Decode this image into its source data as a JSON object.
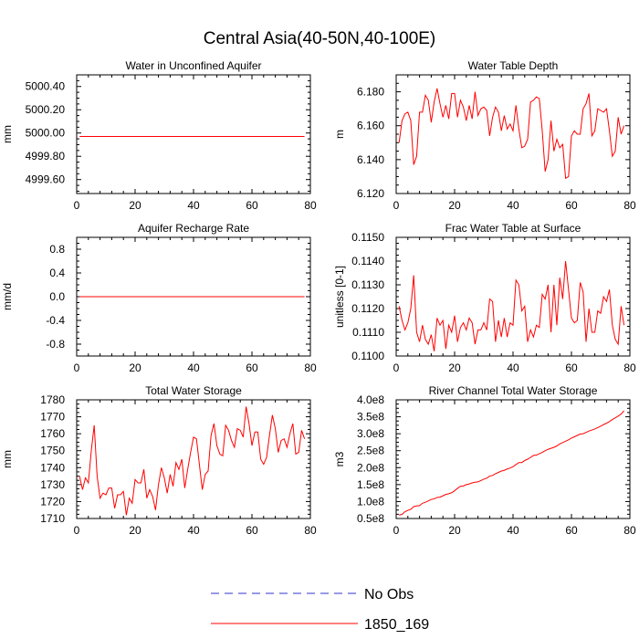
{
  "page_title": "Central Asia(40-50N,40-100E)",
  "colors": {
    "series": "#ff0000",
    "obs": "#3333cc",
    "axis": "#000000",
    "background": "#ffffff"
  },
  "legend": {
    "entries": [
      {
        "label": "No Obs",
        "style": "dashed",
        "color": "#3333cc"
      },
      {
        "label": "1850_169",
        "style": "solid",
        "color": "#ff0000"
      }
    ]
  },
  "chart_data": [
    {
      "type": "line",
      "title": "Water in Unconfined Aquifer",
      "ylabel": "mm",
      "xlim": [
        0,
        80
      ],
      "ylim": [
        4999.48,
        5000.5
      ],
      "xticks": [
        0,
        20,
        40,
        60,
        80
      ],
      "yticks": [
        4999.6,
        4999.8,
        5000.0,
        5000.2,
        5000.4
      ],
      "ytick_labels": [
        "4999.60",
        "4999.80",
        "5000.00",
        "5000.20",
        "5000.40"
      ],
      "series": [
        {
          "name": "1850_169",
          "x_start": 1,
          "values": [
            4999.97,
            4999.97,
            4999.97,
            4999.97,
            4999.97,
            4999.97,
            4999.97,
            4999.97,
            4999.97,
            4999.97,
            4999.97,
            4999.97,
            4999.97,
            4999.97,
            4999.97,
            4999.97,
            4999.97,
            4999.97,
            4999.97,
            4999.97,
            4999.97,
            4999.97,
            4999.97,
            4999.97,
            4999.97,
            4999.97,
            4999.97,
            4999.97,
            4999.97,
            4999.97,
            4999.97,
            4999.97,
            4999.97,
            4999.97,
            4999.97,
            4999.97,
            4999.97,
            4999.97,
            4999.97,
            4999.97,
            4999.97,
            4999.97,
            4999.97,
            4999.97,
            4999.97,
            4999.97,
            4999.97,
            4999.97,
            4999.97,
            4999.97,
            4999.97,
            4999.97,
            4999.97,
            4999.97,
            4999.97,
            4999.97,
            4999.97,
            4999.97,
            4999.97,
            4999.97,
            4999.97,
            4999.97,
            4999.97,
            4999.97,
            4999.97,
            4999.97,
            4999.97,
            4999.97,
            4999.97,
            4999.97,
            4999.97,
            4999.97,
            4999.97,
            4999.97,
            4999.97,
            4999.97,
            4999.97,
            4999.97
          ]
        }
      ]
    },
    {
      "type": "line",
      "title": "Water Table Depth",
      "ylabel": "m",
      "xlim": [
        0,
        80
      ],
      "ylim": [
        6.12,
        6.19
      ],
      "xticks": [
        0,
        20,
        40,
        60,
        80
      ],
      "yticks": [
        6.12,
        6.14,
        6.16,
        6.18
      ],
      "ytick_labels": [
        "6.120",
        "6.140",
        "6.160",
        "6.180"
      ],
      "series": [
        {
          "name": "1850_169",
          "x_start": 1,
          "values": [
            6.15,
            6.163,
            6.167,
            6.168,
            6.163,
            6.137,
            6.142,
            6.168,
            6.168,
            6.178,
            6.175,
            6.162,
            6.174,
            6.182,
            6.173,
            6.165,
            6.172,
            6.164,
            6.179,
            6.179,
            6.165,
            6.175,
            6.171,
            6.163,
            6.172,
            6.164,
            6.18,
            6.166,
            6.17,
            6.171,
            6.169,
            6.154,
            6.165,
            6.171,
            6.168,
            6.157,
            6.166,
            6.158,
            6.161,
            6.157,
            6.172,
            6.158,
            6.147,
            6.148,
            6.152,
            6.174,
            6.175,
            6.177,
            6.176,
            6.157,
            6.133,
            6.14,
            6.163,
            6.145,
            6.152,
            6.147,
            6.149,
            6.129,
            6.13,
            6.154,
            6.157,
            6.155,
            6.155,
            6.17,
            6.173,
            6.179,
            6.154,
            6.157,
            6.17,
            6.169,
            6.168,
            6.17,
            6.157,
            6.142,
            6.145,
            6.165,
            6.155,
            6.16
          ]
        }
      ]
    },
    {
      "type": "line",
      "title": "Aquifer Recharge Rate",
      "ylabel": "mm/d",
      "xlim": [
        0,
        80
      ],
      "ylim": [
        -1.0,
        1.0
      ],
      "xticks": [
        0,
        20,
        40,
        60,
        80
      ],
      "yticks": [
        -0.8,
        -0.4,
        0.0,
        0.4,
        0.8
      ],
      "ytick_labels": [
        "-0.8",
        "-0.4",
        "0.0",
        "0.4",
        "0.8"
      ],
      "series": [
        {
          "name": "1850_169",
          "x_start": 1,
          "values": [
            0.0,
            0.0,
            0.0,
            0.0,
            0.0,
            0.0,
            0.0,
            0.0,
            0.0,
            0.0,
            0.0,
            0.0,
            0.0,
            0.0,
            0.0,
            0.0,
            0.0,
            0.0,
            0.0,
            0.0,
            0.0,
            0.0,
            0.0,
            0.0,
            0.0,
            0.0,
            0.0,
            0.0,
            0.0,
            0.0,
            0.0,
            0.0,
            0.0,
            0.0,
            0.0,
            0.0,
            0.0,
            0.0,
            0.0,
            0.0,
            0.0,
            0.0,
            0.0,
            0.0,
            0.0,
            0.0,
            0.0,
            0.0,
            0.0,
            0.0,
            0.0,
            0.0,
            0.0,
            0.0,
            0.0,
            0.0,
            0.0,
            0.0,
            0.0,
            0.0,
            0.0,
            0.0,
            0.0,
            0.0,
            0.0,
            0.0,
            0.0,
            0.0,
            0.0,
            0.0,
            0.0,
            0.0,
            0.0,
            0.0,
            0.0,
            0.0,
            0.0,
            0.0
          ]
        }
      ]
    },
    {
      "type": "line",
      "title": "Frac Water Table at Surface",
      "ylabel": "unitless [0-1]",
      "xlim": [
        0,
        80
      ],
      "ylim": [
        0.11,
        0.115
      ],
      "xticks": [
        0,
        20,
        40,
        60,
        80
      ],
      "yticks": [
        0.11,
        0.111,
        0.112,
        0.113,
        0.114,
        0.115
      ],
      "ytick_labels": [
        "0.1100",
        "0.1110",
        "0.1120",
        "0.1130",
        "0.1140",
        "0.1150"
      ],
      "series": [
        {
          "name": "1850_169",
          "x_start": 1,
          "values": [
            0.1121,
            0.1115,
            0.1111,
            0.1114,
            0.112,
            0.1134,
            0.111,
            0.1106,
            0.1113,
            0.1107,
            0.1105,
            0.1109,
            0.1102,
            0.1116,
            0.1113,
            0.1115,
            0.1103,
            0.1113,
            0.111,
            0.1117,
            0.1106,
            0.1112,
            0.1114,
            0.1111,
            0.1116,
            0.1114,
            0.1105,
            0.1111,
            0.1111,
            0.1114,
            0.1111,
            0.1124,
            0.1123,
            0.1106,
            0.1115,
            0.1108,
            0.1116,
            0.1108,
            0.1114,
            0.1113,
            0.1132,
            0.113,
            0.1119,
            0.1121,
            0.1106,
            0.1111,
            0.1108,
            0.1113,
            0.1112,
            0.1126,
            0.1124,
            0.113,
            0.111,
            0.113,
            0.1113,
            0.1133,
            0.1124,
            0.114,
            0.1128,
            0.1116,
            0.1114,
            0.1115,
            0.1131,
            0.1127,
            0.1106,
            0.112,
            0.111,
            0.111,
            0.1119,
            0.1118,
            0.1125,
            0.1123,
            0.1128,
            0.1113,
            0.1107,
            0.1105,
            0.1121,
            0.1113
          ]
        }
      ]
    },
    {
      "type": "line",
      "title": "Total Water Storage",
      "ylabel": "mm",
      "xlim": [
        0,
        80
      ],
      "ylim": [
        1710,
        1780
      ],
      "xticks": [
        0,
        20,
        40,
        60,
        80
      ],
      "yticks": [
        1710,
        1720,
        1730,
        1740,
        1750,
        1760,
        1770,
        1780
      ],
      "ytick_labels": [
        "1710",
        "1720",
        "1730",
        "1740",
        "1750",
        "1760",
        "1770",
        "1780"
      ],
      "series": [
        {
          "name": "1850_169",
          "x_start": 1,
          "values": [
            1735,
            1727,
            1734,
            1731,
            1750,
            1765,
            1735,
            1722,
            1725,
            1724,
            1728,
            1728,
            1716,
            1724,
            1724,
            1726,
            1712,
            1722,
            1719,
            1733,
            1731,
            1731,
            1739,
            1722,
            1727,
            1723,
            1715,
            1730,
            1740,
            1734,
            1725,
            1736,
            1729,
            1743,
            1739,
            1745,
            1728,
            1739,
            1749,
            1758,
            1757,
            1742,
            1727,
            1736,
            1738,
            1759,
            1766,
            1753,
            1748,
            1747,
            1765,
            1762,
            1756,
            1752,
            1763,
            1762,
            1758,
            1776,
            1766,
            1753,
            1761,
            1761,
            1745,
            1742,
            1746,
            1759,
            1771,
            1763,
            1749,
            1756,
            1757,
            1752,
            1760,
            1766,
            1748,
            1749,
            1762,
            1757
          ]
        }
      ]
    },
    {
      "type": "line",
      "title": "River Channel Total Water Storage",
      "ylabel": "m3",
      "xlim": [
        0,
        80
      ],
      "ylim": [
        50000000.0,
        400000000.0
      ],
      "xticks": [
        0,
        20,
        40,
        60,
        80
      ],
      "yticks": [
        50000000.0,
        100000000.0,
        150000000.0,
        200000000.0,
        250000000.0,
        300000000.0,
        350000000.0,
        400000000.0
      ],
      "ytick_labels": [
        "0.5e8",
        "1.0e8",
        "1.5e8",
        "2.0e8",
        "2.5e8",
        "3.0e8",
        "3.5e8",
        "4.0e8"
      ],
      "series": [
        {
          "name": "1850_169",
          "x_start": 1,
          "values": [
            60000000.0,
            62000000.0,
            70000000.0,
            74000000.0,
            77000000.0,
            85000000.0,
            87000000.0,
            88000000.0,
            95000000.0,
            98000000.0,
            102000000.0,
            106000000.0,
            108000000.0,
            112000000.0,
            113000000.0,
            117000000.0,
            121000000.0,
            123000000.0,
            126000000.0,
            132000000.0,
            139000000.0,
            145000000.0,
            146000000.0,
            150000000.0,
            152000000.0,
            155000000.0,
            157000000.0,
            158000000.0,
            162000000.0,
            166000000.0,
            169000000.0,
            175000000.0,
            177000000.0,
            182000000.0,
            186000000.0,
            190000000.0,
            192000000.0,
            196000000.0,
            199000000.0,
            203000000.0,
            209000000.0,
            215000000.0,
            215000000.0,
            221000000.0,
            225000000.0,
            230000000.0,
            236000000.0,
            237000000.0,
            241000000.0,
            245000000.0,
            250000000.0,
            254000000.0,
            257000000.0,
            260000000.0,
            264000000.0,
            270000000.0,
            274000000.0,
            278000000.0,
            282000000.0,
            287000000.0,
            291000000.0,
            295000000.0,
            299000000.0,
            300000000.0,
            304000000.0,
            308000000.0,
            311000000.0,
            314000000.0,
            318000000.0,
            322000000.0,
            327000000.0,
            331000000.0,
            336000000.0,
            342000000.0,
            347000000.0,
            352000000.0,
            358000000.0,
            368000000.0
          ]
        }
      ]
    }
  ]
}
